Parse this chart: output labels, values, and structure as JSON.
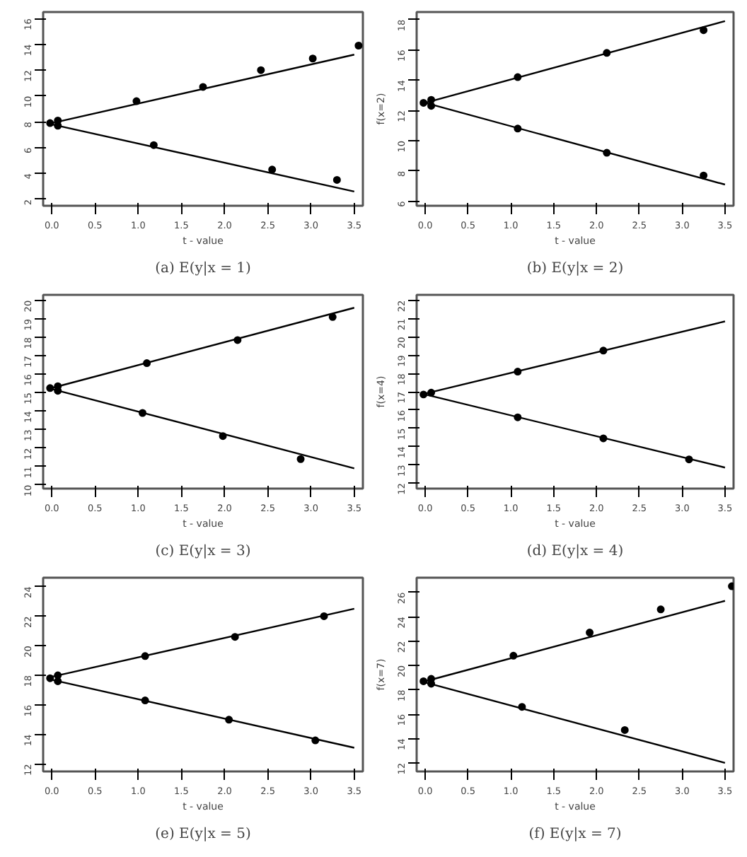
{
  "chart_data": [
    {
      "type": "scatter",
      "title": "(a) E(y|x = 1)",
      "xlabel": "t - value",
      "grid": false,
      "xlim": [
        -0.1,
        3.6
      ],
      "xticks": [
        {
          "value": 0,
          "label": "0.0"
        },
        0.5,
        {
          "value": 1,
          "label": "1.0"
        },
        1.5,
        {
          "value": 2,
          "label": "2.0"
        },
        2.5,
        {
          "value": 3,
          "label": "3.0"
        },
        3.5
      ],
      "ylim": [
        1.5,
        16.5
      ],
      "yticks": [
        2,
        4,
        6,
        8,
        10,
        12,
        14,
        16
      ],
      "series": [
        {
          "marker": "circle",
          "color": "#000000",
          "x": [
            -0.02,
            0.07,
            0.07,
            0.98,
            1.18,
            1.75,
            2.42,
            2.55,
            3.02,
            3.3,
            3.55
          ],
          "values": [
            7.9,
            8.1,
            7.7,
            9.6,
            6.2,
            10.7,
            12.0,
            4.3,
            12.9,
            3.5,
            13.9
          ]
        },
        {
          "type": "line",
          "color": "#000000",
          "x": [
            0,
            3.5
          ],
          "values": [
            7.9,
            13.2
          ]
        },
        {
          "type": "line",
          "color": "#000000",
          "x": [
            0,
            3.5
          ],
          "values": [
            7.8,
            2.6
          ]
        }
      ]
    },
    {
      "type": "scatter",
      "title": "(b) E(y|x = 2)",
      "xlabel": "t - value",
      "ylabel": "f(x=2)",
      "grid": false,
      "xlim": [
        -0.1,
        3.6
      ],
      "xticks": [
        {
          "value": 0,
          "label": "0.0"
        },
        0.5,
        {
          "value": 1,
          "label": "1.0"
        },
        1.5,
        {
          "value": 2,
          "label": "2.0"
        },
        2.5,
        {
          "value": 3,
          "label": "3.0"
        },
        3.5
      ],
      "ylim": [
        5.7,
        18.5
      ],
      "yticks": [
        6,
        8,
        10,
        12,
        14,
        16,
        18
      ],
      "series": [
        {
          "marker": "circle",
          "color": "#000000",
          "x": [
            -0.02,
            0.07,
            0.07,
            1.08,
            1.08,
            2.12,
            2.12,
            3.25,
            3.25
          ],
          "values": [
            12.5,
            12.7,
            12.3,
            14.2,
            10.8,
            15.8,
            9.2,
            17.3,
            7.7
          ]
        },
        {
          "type": "line",
          "color": "#000000",
          "x": [
            0,
            3.5
          ],
          "values": [
            12.5,
            17.9
          ]
        },
        {
          "type": "line",
          "color": "#000000",
          "x": [
            0,
            3.5
          ],
          "values": [
            12.5,
            7.1
          ]
        }
      ]
    },
    {
      "type": "scatter",
      "title": "(c) E(y|x = 3)",
      "xlabel": "t - value",
      "grid": false,
      "xlim": [
        -0.1,
        3.6
      ],
      "xticks": [
        {
          "value": 0,
          "label": "0.0"
        },
        0.5,
        {
          "value": 1,
          "label": "1.0"
        },
        1.5,
        {
          "value": 2,
          "label": "2.0"
        },
        2.5,
        {
          "value": 3,
          "label": "3.0"
        },
        3.5
      ],
      "ylim": [
        9.8,
        20.3
      ],
      "yticks": [
        10,
        11,
        12,
        13,
        14,
        15,
        16,
        17,
        18,
        19,
        20
      ],
      "series": [
        {
          "marker": "circle",
          "color": "#000000",
          "x": [
            -0.02,
            0.07,
            0.07,
            1.1,
            1.05,
            2.15,
            1.98,
            2.88,
            3.25
          ],
          "values": [
            15.25,
            15.35,
            15.1,
            16.6,
            13.9,
            17.85,
            12.65,
            11.4,
            19.1
          ]
        },
        {
          "type": "line",
          "color": "#000000",
          "x": [
            0,
            3.5
          ],
          "values": [
            15.25,
            19.6
          ]
        },
        {
          "type": "line",
          "color": "#000000",
          "x": [
            0,
            3.5
          ],
          "values": [
            15.2,
            10.9
          ]
        }
      ]
    },
    {
      "type": "scatter",
      "title": "(d) E(y|x = 4)",
      "xlabel": "t - value",
      "ylabel": "f(x=4)",
      "grid": false,
      "xlim": [
        -0.1,
        3.6
      ],
      "xticks": [
        {
          "value": 0,
          "label": "0.0"
        },
        0.5,
        {
          "value": 1,
          "label": "1.0"
        },
        1.5,
        {
          "value": 2,
          "label": "2.0"
        },
        2.5,
        {
          "value": 3,
          "label": "3.0"
        },
        3.5
      ],
      "ylim": [
        11.7,
        22.3
      ],
      "yticks": [
        12,
        13,
        14,
        15,
        16,
        17,
        18,
        19,
        20,
        21,
        22
      ],
      "series": [
        {
          "marker": "circle",
          "color": "#000000",
          "x": [
            -0.02,
            0.07,
            1.08,
            1.08,
            2.08,
            2.08,
            3.08
          ],
          "values": [
            16.85,
            16.95,
            18.1,
            15.6,
            19.25,
            14.45,
            13.3
          ]
        },
        {
          "type": "line",
          "color": "#000000",
          "x": [
            0,
            3.5
          ],
          "values": [
            16.9,
            20.85
          ]
        },
        {
          "type": "line",
          "color": "#000000",
          "x": [
            0,
            3.5
          ],
          "values": [
            16.85,
            12.85
          ]
        }
      ]
    },
    {
      "type": "scatter",
      "title": "(e) E(y|x = 5)",
      "xlabel": "t - value",
      "grid": false,
      "xlim": [
        -0.1,
        3.6
      ],
      "xticks": [
        {
          "value": 0,
          "label": "0.0"
        },
        0.5,
        {
          "value": 1,
          "label": "1.0"
        },
        1.5,
        {
          "value": 2,
          "label": "2.0"
        },
        2.5,
        {
          "value": 3,
          "label": "3.0"
        },
        3.5
      ],
      "ylim": [
        11.5,
        24.6
      ],
      "yticks": [
        12,
        14,
        16,
        18,
        20,
        22,
        24
      ],
      "series": [
        {
          "marker": "circle",
          "color": "#000000",
          "x": [
            -0.02,
            0.07,
            0.07,
            1.08,
            1.08,
            2.12,
            2.05,
            3.05,
            3.15
          ],
          "values": [
            17.8,
            18.0,
            17.6,
            19.3,
            16.3,
            20.6,
            15.0,
            13.6,
            22.0
          ]
        },
        {
          "type": "line",
          "color": "#000000",
          "x": [
            0,
            3.5
          ],
          "values": [
            17.9,
            22.5
          ]
        },
        {
          "type": "line",
          "color": "#000000",
          "x": [
            0,
            3.5
          ],
          "values": [
            17.7,
            13.1
          ]
        }
      ]
    },
    {
      "type": "scatter",
      "title": "(f) E(y|x = 7)",
      "xlabel": "t - value",
      "ylabel": "f(x=7)",
      "grid": false,
      "xlim": [
        -0.1,
        3.6
      ],
      "xticks": [
        {
          "value": 0,
          "label": "0.0"
        },
        0.5,
        {
          "value": 1,
          "label": "1.0"
        },
        1.5,
        {
          "value": 2,
          "label": "2.0"
        },
        2.5,
        {
          "value": 3,
          "label": "3.0"
        },
        3.5
      ],
      "ylim": [
        11.3,
        27.2
      ],
      "yticks": [
        12,
        14,
        16,
        18,
        20,
        22,
        24,
        26
      ],
      "series": [
        {
          "marker": "circle",
          "color": "#000000",
          "x": [
            -0.02,
            0.07,
            0.07,
            1.03,
            1.13,
            1.92,
            2.33,
            2.75,
            3.58
          ],
          "values": [
            18.7,
            18.9,
            18.5,
            20.8,
            16.6,
            22.7,
            14.7,
            24.6,
            26.5
          ]
        },
        {
          "type": "line",
          "color": "#000000",
          "x": [
            0,
            3.5
          ],
          "values": [
            18.7,
            25.3
          ]
        },
        {
          "type": "line",
          "color": "#000000",
          "x": [
            0,
            3.5
          ],
          "values": [
            18.6,
            12.0
          ]
        }
      ]
    }
  ]
}
